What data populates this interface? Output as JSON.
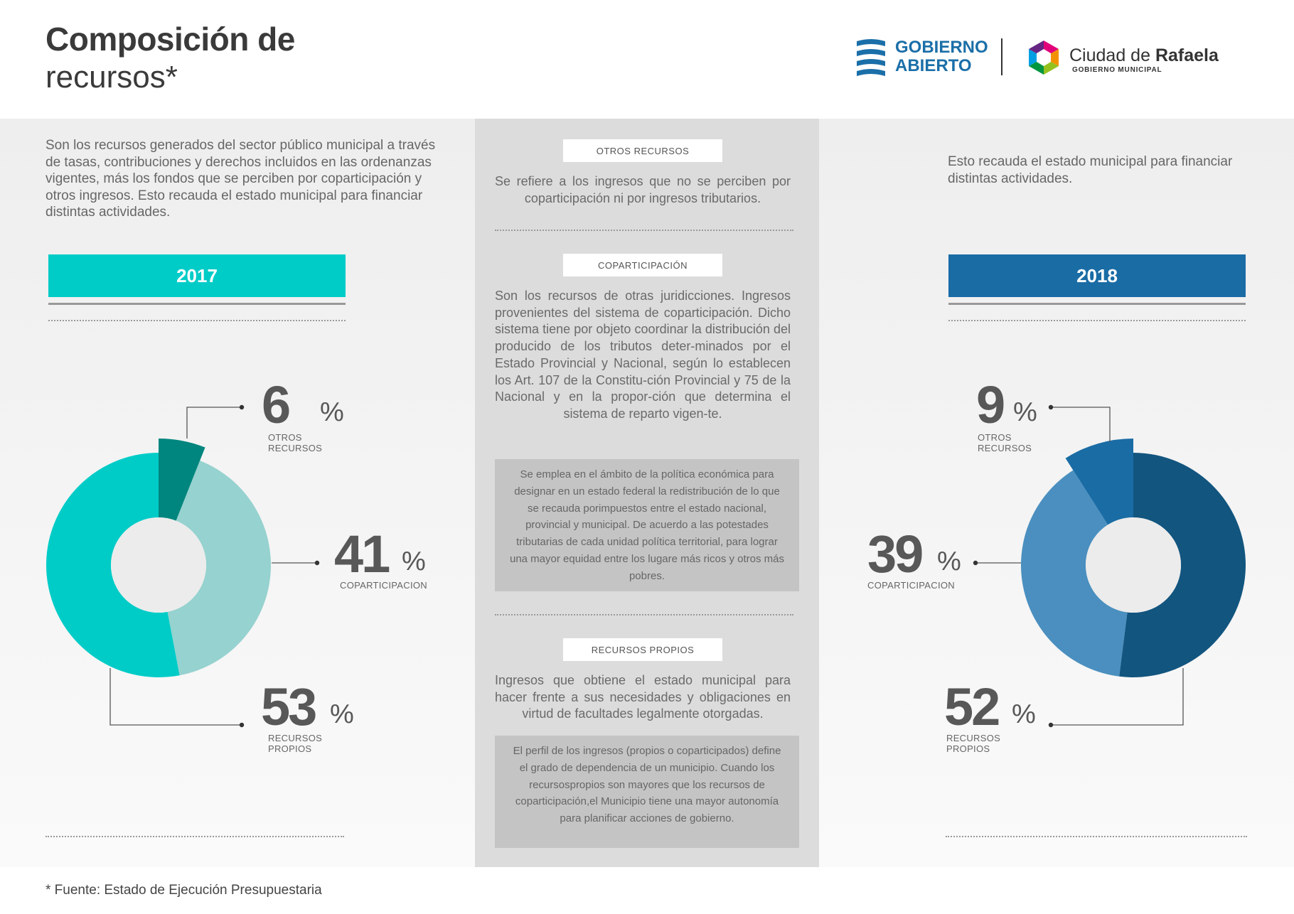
{
  "header": {
    "title_line1": "Composición de",
    "title_line2": "recursos*",
    "logo_gobierno_line1": "GOBIERNO",
    "logo_gobierno_line2": "ABIERTO",
    "logo_ciudad_prefix": "Ciudad de ",
    "logo_ciudad_name": "Rafaela",
    "logo_ciudad_sub": "GOBIERNO MUNICIPAL"
  },
  "left": {
    "intro": "Son los recursos generados del sector público municipal a través de tasas, contribuciones y derechos incluidos en las ordenanzas vigentes, más los fondos que se perciben por coparticipación y otros ingresos. Esto recauda el estado municipal para financiar distintas actividades.",
    "year": "2017"
  },
  "right": {
    "intro": "Esto recauda el estado municipal para financiar distintas actividades.",
    "year": "2018"
  },
  "middle": {
    "otros_title": "OTROS RECURSOS",
    "otros_text": "Se refiere a los ingresos que no se perciben por coparticipación ni por ingresos tributarios.",
    "copa_title": "COPARTICIPACIÓN",
    "copa_text": "Son los recursos de otras juridicciones. Ingresos provenientes del sistema de coparticipación. Dicho sistema tiene por objeto coordinar la distribución del producido de los tributos deter-minados por el Estado Provincial y Nacional, según lo establecen los Art. 107 de la Constitu-ción Provincial y 75 de la Nacional y en la propor-ción que determina el sistema de reparto vigen-te.",
    "copa_box": "Se emplea en el ámbito de la política económica para designar en un estado federal la redistribución de lo que se recauda porimpuestos entre el estado nacional, provincial y municipal. De acuerdo a las potestades tributarias de cada unidad política territorial, para lograr una mayor equidad entre los lugare más ricos y otros más pobres.",
    "propios_title": "RECURSOS PROPIOS",
    "propios_text": "Ingresos que obtiene el estado municipal para hacer frente a sus necesidades y obligaciones en virtud de facultades legalmente otorgadas.",
    "propios_box": "El perfil de los ingresos (propios o coparticipados) define el grado de dependencia de un municipio. Cuando los recursospropios son mayores que los recursos de coparticipación,el Municipio tiene una mayor autonomía para planificar acciones de gobierno."
  },
  "footnote": "* Fuente: Estado de Ejecución Presupuestaria",
  "chart_data": [
    {
      "type": "pie",
      "title": "2017",
      "categories": [
        "OTROS RECURSOS",
        "COPARTICIPACION",
        "RECURSOS PROPIOS"
      ],
      "labels_display": [
        "OTROS\nRECURSOS",
        "COPARTICIPACION",
        "RECURSOS\nPROPIOS"
      ],
      "values": [
        6,
        41,
        53
      ],
      "value_labels": [
        "6",
        "41",
        "53"
      ],
      "unit": "%",
      "colors": [
        "#00867e",
        "#96d2cf",
        "#00ccc7"
      ]
    },
    {
      "type": "pie",
      "title": "2018",
      "categories": [
        "OTROS RECURSOS",
        "COPARTICIPACION",
        "RECURSOS PROPIOS"
      ],
      "labels_display": [
        "OTROS\nRECURSOS",
        "COPARTICIPACION",
        "RECURSOS\nPROPIOS"
      ],
      "values": [
        9,
        39,
        52
      ],
      "value_labels": [
        "9",
        "39",
        "52"
      ],
      "unit": "%",
      "colors": [
        "#1a6ca5",
        "#4a8fbf",
        "#12557f"
      ]
    }
  ],
  "colors": {
    "accent_2017": "#00ccc7",
    "accent_2018": "#1a6ca5",
    "logo_blue": "#1b6fa8"
  }
}
